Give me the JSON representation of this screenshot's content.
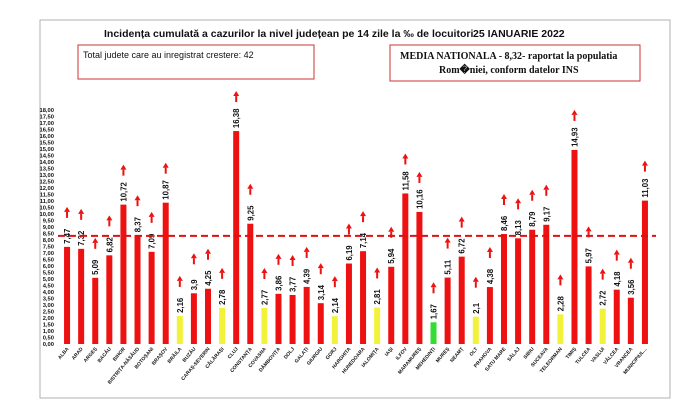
{
  "header": {
    "title": "Incidența cumulată a cazurilor la nivel județean pe 14 zile la ‰ de locuitori",
    "date": "25 IANUARIE 2022",
    "box_left": "Total judete care au inregistrat crestere: 42",
    "box_right_line1": "MEDIA NATIONALA - 8,32-  raportat la populatia",
    "box_right_line2": "Rom�niei, conform datelor INS"
  },
  "colors": {
    "bar_red": "#ee1111",
    "bar_yellow": "#f2f23a",
    "bar_green": "#33dd33",
    "mean_line": "#dd1111",
    "arrow": "#ee1111",
    "border": "#999999"
  },
  "chart_data": {
    "type": "bar",
    "title": "Incidența cumulată a cazurilor la nivel județean pe 14 zile la ‰ de locuitori",
    "categories": [
      "ALBA",
      "ARAD",
      "ARGEȘ",
      "BACĂU",
      "BIHOR",
      "BISTRIȚA-NĂSĂUD",
      "BOTOȘANI",
      "BRAȘOV",
      "BRĂILA",
      "BUZĂU",
      "CARAȘ-SEVERIN",
      "CĂLĂRAȘI",
      "CLUJ",
      "CONSTANȚA",
      "COVASNA",
      "DÂMBOVIȚA",
      "DOLJ",
      "GALAȚI",
      "GIURGIU",
      "GORJ",
      "HARGHITA",
      "HUNEDOARA",
      "IALOMIȚA",
      "IAȘI",
      "ILFOV",
      "MARAMUREȘ",
      "MEHEDINȚI",
      "MUREȘ",
      "NEAMȚ",
      "OLT",
      "PRAHOVA",
      "SATU MARE",
      "SĂLAJ",
      "SIBIU",
      "SUCEAVA",
      "TELEORMAN",
      "TIMIȘ",
      "TULCEA",
      "VASLUI",
      "VÂLCEA",
      "VRANCEA",
      "MUNICIPIUL..."
    ],
    "values": [
      7.47,
      7.32,
      5.09,
      6.82,
      10.72,
      8.37,
      7.09,
      10.87,
      2.16,
      3.9,
      4.25,
      2.78,
      16.38,
      9.25,
      2.77,
      3.86,
      3.77,
      4.39,
      3.14,
      2.14,
      6.19,
      7.14,
      2.81,
      5.94,
      11.58,
      10.16,
      1.67,
      5.11,
      6.72,
      2.1,
      4.38,
      8.46,
      8.13,
      8.79,
      9.17,
      2.28,
      14.93,
      5.97,
      2.72,
      4.18,
      3.56,
      11.03
    ],
    "labels": [
      "7,47",
      "7,32",
      "5,09",
      "6,82",
      "10,72",
      "8,37",
      "7,09",
      "10,87",
      "2,16",
      "3,9",
      "4,25",
      "2,78",
      "16,38",
      "9,25",
      "2,77",
      "3,86",
      "3,77",
      "4,39",
      "3,14",
      "2,14",
      "6,19",
      "7,14",
      "2,81",
      "5,94",
      "11,58",
      "10,16",
      "1,67",
      "5,11",
      "6,72",
      "2,1",
      "4,38",
      "8,46",
      "8,13",
      "8,79",
      "9,17",
      "2,28",
      "14,93",
      "5,97",
      "2,72",
      "4,18",
      "3,56",
      "11,03"
    ],
    "colors": [
      "red",
      "red",
      "red",
      "red",
      "red",
      "red",
      "red",
      "red",
      "yellow",
      "red",
      "red",
      "yellow",
      "red",
      "red",
      "yellow",
      "red",
      "red",
      "red",
      "red",
      "yellow",
      "red",
      "red",
      "yellow",
      "red",
      "red",
      "red",
      "green",
      "red",
      "red",
      "yellow",
      "red",
      "red",
      "red",
      "red",
      "red",
      "yellow",
      "red",
      "red",
      "yellow",
      "red",
      "red",
      "red"
    ],
    "trend_up": true,
    "mean_line": 8.32,
    "ylim": [
      0,
      18
    ],
    "ytick_step": 0.5,
    "grid": false
  }
}
